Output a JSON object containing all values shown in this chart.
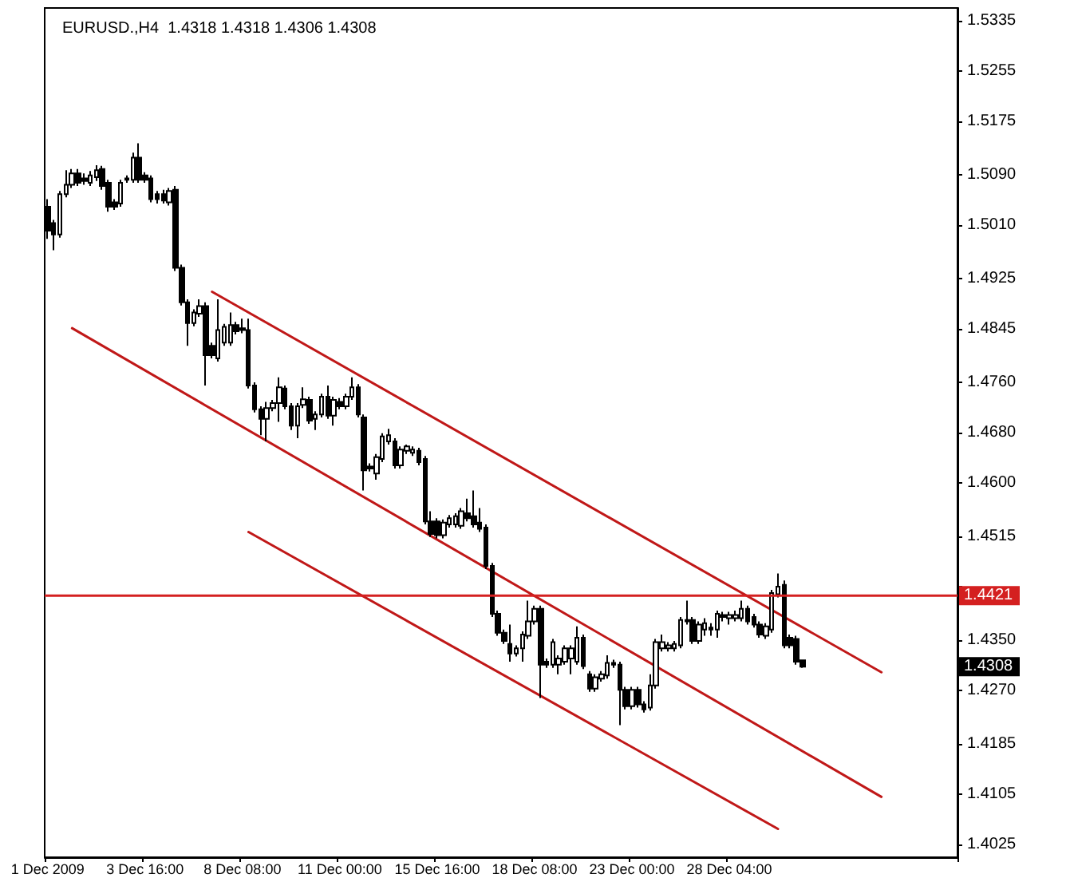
{
  "chart_data": {
    "type": "candlestick",
    "title": "EURUSD.,H4  1.4318 1.4318 1.4306 1.4308",
    "color": "#000000",
    "marker": "none",
    "line_style": "solid",
    "categories": [
      "1 Dec 2009",
      null,
      null,
      null,
      null,
      null,
      null,
      null,
      null,
      null,
      null,
      null,
      null,
      null,
      null,
      null,
      "3 Dec 16:00",
      null,
      null,
      null,
      null,
      null,
      null,
      null,
      null,
      null,
      null,
      null,
      null,
      null,
      null,
      null,
      "8 Dec 08:00",
      null,
      null,
      null,
      null,
      null,
      null,
      null,
      null,
      null,
      null,
      null,
      null,
      null,
      null,
      null,
      "11 Dec 00:00",
      null,
      null,
      null,
      null,
      null,
      null,
      null,
      null,
      null,
      null,
      null,
      null,
      null,
      null,
      null,
      "15 Dec 16:00",
      null,
      null,
      null,
      null,
      null,
      null,
      null,
      null,
      null,
      null,
      null,
      null,
      null,
      null,
      null,
      "18 Dec 08:00",
      null,
      null,
      null,
      null,
      null,
      null,
      null,
      null,
      null,
      null,
      null,
      null,
      null,
      null,
      null,
      "23 Dec 00:00",
      null,
      null,
      null,
      null,
      null,
      null,
      null,
      null,
      null,
      null,
      null,
      null,
      null,
      null,
      null,
      "28 Dec 04:00",
      null,
      null,
      null,
      null,
      null,
      null,
      null,
      null,
      null,
      null,
      null,
      null,
      null,
      null,
      null,
      null,
      null,
      null,
      null,
      null,
      null,
      null,
      null,
      null,
      null,
      null,
      null,
      null,
      null,
      null,
      null,
      null,
      null,
      null,
      null,
      null,
      null
    ],
    "ohlc": [
      [
        1.5039,
        1.5051,
        1.4988,
        1.5001
      ],
      [
        1.5013,
        1.5018,
        1.497,
        1.4995
      ],
      [
        1.4995,
        1.5064,
        1.499,
        1.5059
      ],
      [
        1.5059,
        1.5097,
        1.5054,
        1.5074
      ],
      [
        1.5074,
        1.5099,
        1.5069,
        1.5092
      ],
      [
        1.5092,
        1.5099,
        1.5072,
        1.5077
      ],
      [
        1.5084,
        1.5092,
        1.5074,
        1.508
      ],
      [
        1.5077,
        1.5096,
        1.5072,
        1.5089
      ],
      [
        1.5086,
        1.5105,
        1.508,
        1.5097
      ],
      [
        1.5099,
        1.5104,
        1.5066,
        1.5072
      ],
      [
        1.5077,
        1.5082,
        1.5031,
        1.5039
      ],
      [
        1.5046,
        1.5051,
        1.5034,
        1.5039
      ],
      [
        1.5044,
        1.5082,
        1.5039,
        1.5077
      ],
      [
        1.5082,
        1.5089,
        1.5077,
        1.5084
      ],
      [
        1.5082,
        1.5125,
        1.5077,
        1.5117
      ],
      [
        1.5117,
        1.514,
        1.5077,
        1.5082
      ],
      [
        1.5089,
        1.5094,
        1.5077,
        1.5082
      ],
      [
        1.5084,
        1.5089,
        1.5046,
        1.5051
      ],
      [
        1.5059,
        1.5064,
        1.5044,
        1.5051
      ],
      [
        1.5059,
        1.5066,
        1.5044,
        1.5049
      ],
      [
        1.5046,
        1.5069,
        1.5041,
        1.5064
      ],
      [
        1.5066,
        1.5072,
        1.4937,
        1.4942
      ],
      [
        1.4942,
        1.4947,
        1.4882,
        1.4887
      ],
      [
        1.4887,
        1.4892,
        1.4818,
        1.4854
      ],
      [
        1.4854,
        1.4876,
        1.4849,
        1.4871
      ],
      [
        1.4869,
        1.4892,
        1.4864,
        1.4881
      ],
      [
        1.4881,
        1.4887,
        1.4755,
        1.4803
      ],
      [
        1.4818,
        1.4823,
        1.4798,
        1.4803
      ],
      [
        1.4798,
        1.4892,
        1.4793,
        1.4843
      ],
      [
        1.4823,
        1.4853,
        1.4818,
        1.4848
      ],
      [
        1.4823,
        1.4871,
        1.4818,
        1.4851
      ],
      [
        1.4851,
        1.4856,
        1.4836,
        1.4841
      ],
      [
        1.4846,
        1.4861,
        1.4838,
        1.4843
      ],
      [
        1.4843,
        1.4861,
        1.475,
        1.4755
      ],
      [
        1.4755,
        1.476,
        1.4712,
        1.4717
      ],
      [
        1.4717,
        1.4722,
        1.4676,
        1.4702
      ],
      [
        1.4702,
        1.4729,
        1.4666,
        1.4719
      ],
      [
        1.4719,
        1.4732,
        1.4714,
        1.4727
      ],
      [
        1.4727,
        1.4768,
        1.4697,
        1.4752
      ],
      [
        1.475,
        1.4755,
        1.4717,
        1.4722
      ],
      [
        1.4722,
        1.4727,
        1.4684,
        1.4691
      ],
      [
        1.4691,
        1.4727,
        1.4671,
        1.4722
      ],
      [
        1.4724,
        1.4752,
        1.4719,
        1.4733
      ],
      [
        1.4732,
        1.4737,
        1.4694,
        1.4699
      ],
      [
        1.4702,
        1.4714,
        1.4684,
        1.4709
      ],
      [
        1.4709,
        1.4742,
        1.4704,
        1.4737
      ],
      [
        1.4737,
        1.4755,
        1.4702,
        1.4707
      ],
      [
        1.4707,
        1.4737,
        1.4691,
        1.4732
      ],
      [
        1.4729,
        1.4735,
        1.4717,
        1.4722
      ],
      [
        1.4722,
        1.4742,
        1.4717,
        1.4737
      ],
      [
        1.4737,
        1.4768,
        1.4732,
        1.4752
      ],
      [
        1.4752,
        1.4757,
        1.4704,
        1.4709
      ],
      [
        1.4704,
        1.4709,
        1.4588,
        1.462
      ],
      [
        1.4626,
        1.4631,
        1.4618,
        1.4623
      ],
      [
        1.4615,
        1.4646,
        1.4605,
        1.4641
      ],
      [
        1.4638,
        1.4679,
        1.4633,
        1.4674
      ],
      [
        1.4666,
        1.4686,
        1.4661,
        1.4676
      ],
      [
        1.4666,
        1.4671,
        1.4623,
        1.4628
      ],
      [
        1.4628,
        1.4658,
        1.4623,
        1.4653
      ],
      [
        1.4651,
        1.4661,
        1.4646,
        1.4658
      ],
      [
        1.4648,
        1.4658,
        1.4643,
        1.4653
      ],
      [
        1.4651,
        1.4656,
        1.4628,
        1.4633
      ],
      [
        1.4638,
        1.4643,
        1.4534,
        1.4539
      ],
      [
        1.4539,
        1.4555,
        1.4514,
        1.4519
      ],
      [
        1.4539,
        1.4544,
        1.4512,
        1.4517
      ],
      [
        1.4517,
        1.4542,
        1.4512,
        1.4537
      ],
      [
        1.4534,
        1.4549,
        1.4529,
        1.4544
      ],
      [
        1.4534,
        1.4552,
        1.4529,
        1.4547
      ],
      [
        1.4532,
        1.456,
        1.4527,
        1.4555
      ],
      [
        1.4552,
        1.4575,
        1.4539,
        1.4544
      ],
      [
        1.4547,
        1.4588,
        1.4529,
        1.4534
      ],
      [
        1.4537,
        1.456,
        1.4522,
        1.4527
      ],
      [
        1.4529,
        1.4534,
        1.4463,
        1.4468
      ],
      [
        1.4468,
        1.4473,
        1.4387,
        1.4392
      ],
      [
        1.4392,
        1.4397,
        1.4357,
        1.4362
      ],
      [
        1.4362,
        1.4367,
        1.4344,
        1.4349
      ],
      [
        1.4344,
        1.4375,
        1.4316,
        1.4329
      ],
      [
        1.4329,
        1.4342,
        1.4324,
        1.4337
      ],
      [
        1.4337,
        1.4364,
        1.4316,
        1.4359
      ],
      [
        1.4357,
        1.4413,
        1.4352,
        1.438
      ],
      [
        1.438,
        1.4405,
        1.4375,
        1.44
      ],
      [
        1.44,
        1.4405,
        1.4258,
        1.4311
      ],
      [
        1.4316,
        1.4321,
        1.4306,
        1.4311
      ],
      [
        1.4311,
        1.4352,
        1.4306,
        1.4347
      ],
      [
        1.4311,
        1.4326,
        1.4296,
        1.4321
      ],
      [
        1.4316,
        1.4342,
        1.4311,
        1.4337
      ],
      [
        1.4321,
        1.4342,
        1.4296,
        1.4337
      ],
      [
        1.4316,
        1.4372,
        1.4311,
        1.4354
      ],
      [
        1.4354,
        1.4359,
        1.4304,
        1.4309
      ],
      [
        1.4296,
        1.4301,
        1.4268,
        1.4273
      ],
      [
        1.4273,
        1.4296,
        1.4268,
        1.4291
      ],
      [
        1.4289,
        1.4301,
        1.4284,
        1.4296
      ],
      [
        1.4294,
        1.4326,
        1.4289,
        1.4314
      ],
      [
        1.4314,
        1.4319,
        1.4306,
        1.4311
      ],
      [
        1.4311,
        1.4316,
        1.4215,
        1.4271
      ],
      [
        1.4271,
        1.4276,
        1.424,
        1.4245
      ],
      [
        1.4245,
        1.4276,
        1.424,
        1.4271
      ],
      [
        1.4271,
        1.4276,
        1.4243,
        1.4248
      ],
      [
        1.4248,
        1.4253,
        1.4235,
        1.424
      ],
      [
        1.4243,
        1.4296,
        1.4238,
        1.4278
      ],
      [
        1.4278,
        1.4352,
        1.4273,
        1.4347
      ],
      [
        1.4337,
        1.4359,
        1.4332,
        1.4347
      ],
      [
        1.4337,
        1.4347,
        1.4332,
        1.4342
      ],
      [
        1.4337,
        1.4349,
        1.4332,
        1.4344
      ],
      [
        1.4342,
        1.4387,
        1.4337,
        1.4382
      ],
      [
        1.4382,
        1.4413,
        1.4375,
        1.438
      ],
      [
        1.4382,
        1.4387,
        1.4344,
        1.4349
      ],
      [
        1.4349,
        1.438,
        1.4344,
        1.4375
      ],
      [
        1.4367,
        1.4385,
        1.4357,
        1.4377
      ],
      [
        1.437,
        1.4377,
        1.4357,
        1.4367
      ],
      [
        1.4367,
        1.4397,
        1.4354,
        1.4392
      ],
      [
        1.439,
        1.4395,
        1.438,
        1.4387
      ],
      [
        1.4385,
        1.4395,
        1.4375,
        1.439
      ],
      [
        1.4385,
        1.4397,
        1.438,
        1.439
      ],
      [
        1.4385,
        1.4413,
        1.438,
        1.44
      ],
      [
        1.44,
        1.4405,
        1.4375,
        1.438
      ],
      [
        1.4387,
        1.4392,
        1.437,
        1.4375
      ],
      [
        1.4375,
        1.438,
        1.4354,
        1.4359
      ],
      [
        1.4357,
        1.4377,
        1.4352,
        1.4372
      ],
      [
        1.4367,
        1.443,
        1.4362,
        1.4425
      ],
      [
        1.4423,
        1.4456,
        1.4418,
        1.4435
      ],
      [
        1.4438,
        1.4445,
        1.4337,
        1.4342
      ],
      [
        1.4354,
        1.4359,
        1.4337,
        1.4342
      ],
      [
        1.4352,
        1.4357,
        1.4311,
        1.4316
      ],
      [
        1.4318,
        1.4318,
        1.4306,
        1.4308
      ],
      null,
      null,
      null,
      null,
      null,
      null,
      null,
      null,
      null,
      null,
      null,
      null,
      null,
      null,
      null,
      null,
      null,
      null,
      null,
      null,
      null,
      null,
      null,
      null,
      null
    ],
    "series": [
      {
        "type": "line",
        "color": "#c01818",
        "values": [
          null,
          null,
          null,
          null,
          null,
          null,
          null,
          null,
          null,
          null,
          null,
          null,
          null,
          null,
          null,
          null,
          null,
          null,
          null,
          null,
          null,
          null,
          null,
          null,
          null,
          null,
          null,
          1.4904,
          null,
          null,
          null,
          null,
          null,
          null,
          null,
          null,
          null,
          null,
          null,
          null,
          null,
          null,
          null,
          null,
          null,
          null,
          null,
          null,
          null,
          null,
          null,
          null,
          null,
          null,
          null,
          null,
          null,
          null,
          null,
          null,
          null,
          null,
          null,
          null,
          null,
          null,
          null,
          null,
          null,
          null,
          null,
          null,
          null,
          null,
          null,
          null,
          null,
          null,
          null,
          null,
          null,
          null,
          null,
          null,
          null,
          null,
          null,
          null,
          null,
          null,
          null,
          null,
          null,
          null,
          null,
          null,
          null,
          null,
          null,
          null,
          null,
          null,
          null,
          null,
          null,
          null,
          null,
          null,
          null,
          null,
          null,
          null,
          null,
          null,
          null,
          null,
          null,
          null,
          null,
          null,
          null,
          null,
          null,
          null,
          null,
          null,
          null,
          null,
          null,
          null,
          null,
          null,
          null,
          null,
          null,
          null,
          null,
          1.4299,
          null,
          null,
          null,
          null,
          null,
          null,
          null,
          null,
          null,
          null,
          null,
          null
        ]
      },
      {
        "type": "line",
        "color": "#c01818",
        "values": [
          null,
          null,
          null,
          null,
          1.4846,
          null,
          null,
          null,
          null,
          null,
          null,
          null,
          null,
          null,
          null,
          null,
          null,
          null,
          null,
          null,
          null,
          null,
          null,
          null,
          null,
          null,
          null,
          null,
          null,
          null,
          null,
          null,
          null,
          null,
          null,
          null,
          null,
          null,
          null,
          null,
          null,
          null,
          null,
          null,
          null,
          null,
          null,
          null,
          null,
          null,
          null,
          null,
          null,
          null,
          null,
          null,
          null,
          null,
          null,
          null,
          null,
          null,
          null,
          null,
          null,
          null,
          null,
          null,
          null,
          null,
          null,
          null,
          null,
          null,
          null,
          null,
          null,
          null,
          null,
          null,
          null,
          null,
          null,
          null,
          null,
          null,
          null,
          null,
          null,
          null,
          null,
          null,
          null,
          null,
          null,
          null,
          null,
          null,
          null,
          null,
          null,
          null,
          null,
          null,
          null,
          null,
          null,
          null,
          null,
          null,
          null,
          null,
          null,
          null,
          null,
          null,
          null,
          null,
          null,
          null,
          null,
          null,
          null,
          null,
          null,
          null,
          null,
          null,
          null,
          null,
          null,
          null,
          null,
          null,
          null,
          null,
          null,
          1.4101,
          null,
          null,
          null,
          null,
          null,
          null,
          null,
          null,
          null,
          null,
          null,
          null
        ]
      },
      {
        "type": "line",
        "color": "#c01818",
        "values": [
          null,
          null,
          null,
          null,
          null,
          null,
          null,
          null,
          null,
          null,
          null,
          null,
          null,
          null,
          null,
          null,
          null,
          null,
          null,
          null,
          null,
          null,
          null,
          null,
          null,
          null,
          null,
          null,
          null,
          null,
          null,
          null,
          null,
          1.4522,
          null,
          null,
          null,
          null,
          null,
          null,
          null,
          null,
          null,
          null,
          null,
          null,
          null,
          null,
          null,
          null,
          null,
          null,
          null,
          null,
          null,
          null,
          null,
          null,
          null,
          null,
          null,
          null,
          null,
          null,
          null,
          null,
          null,
          null,
          null,
          null,
          null,
          null,
          null,
          null,
          null,
          null,
          null,
          null,
          null,
          null,
          null,
          null,
          null,
          null,
          null,
          null,
          null,
          null,
          null,
          null,
          null,
          null,
          null,
          null,
          null,
          null,
          null,
          null,
          null,
          null,
          null,
          null,
          null,
          null,
          null,
          null,
          null,
          null,
          null,
          null,
          null,
          null,
          null,
          null,
          null,
          null,
          null,
          null,
          null,
          null,
          1.405,
          null,
          null,
          null,
          null,
          null,
          null,
          null,
          null,
          null,
          null,
          null,
          null,
          null,
          null,
          null,
          null,
          null,
          null,
          null,
          null,
          null,
          null,
          null,
          null,
          null,
          null,
          null,
          null,
          null
        ]
      }
    ],
    "ylim": [
      1.4005,
      1.5355
    ],
    "yticks": [
      1.5335,
      1.5255,
      1.5175,
      {
        "value": 1.509,
        "label": "1.5090"
      },
      {
        "value": 1.501,
        "label": "1.5010"
      },
      1.4925,
      1.4845,
      {
        "value": 1.476,
        "label": "1.4760"
      },
      {
        "value": 1.468,
        "label": "1.4680"
      },
      {
        "value": 1.46,
        "label": "1.4600"
      },
      1.4515,
      {
        "value": 1.4435,
        "label": null
      },
      {
        "value": 1.435,
        "label": "1.4350"
      },
      {
        "value": 1.427,
        "label": "1.4270"
      },
      1.4185,
      1.4105,
      1.4025
    ],
    "ref_lines": [
      {
        "axis": "y",
        "value": 1.4421,
        "label": "1.4421",
        "color": "#d42020"
      }
    ],
    "annotations": [
      {
        "text": "1.4308",
        "y": 1.4308
      }
    ]
  }
}
